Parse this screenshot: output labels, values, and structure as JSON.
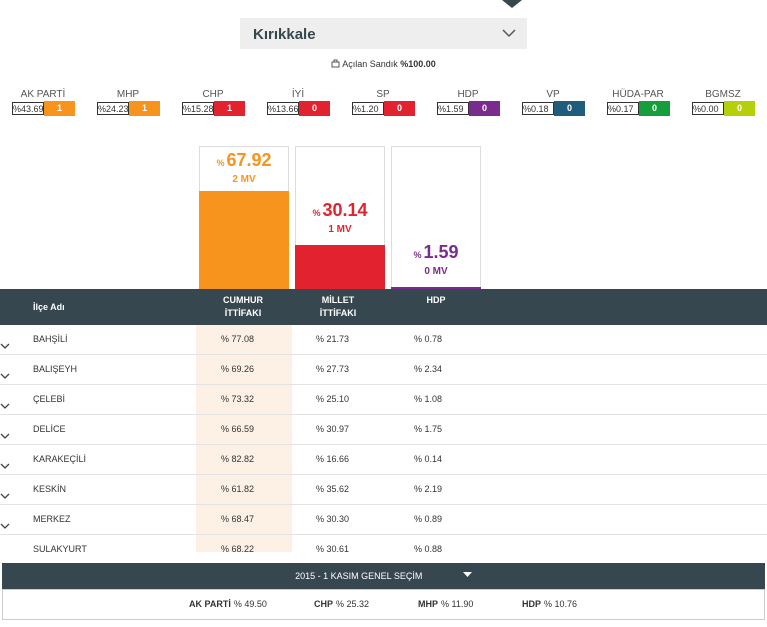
{
  "header": {
    "province": "Kırıkkale",
    "opened_label": "Açılan Sandık",
    "opened_value": "%100.00"
  },
  "parties": [
    {
      "name": "AK PARTİ",
      "pct": "%43.69",
      "seats": "1",
      "color": "#f7941d"
    },
    {
      "name": "MHP",
      "pct": "%24.23",
      "seats": "1",
      "color": "#f7941d"
    },
    {
      "name": "CHP",
      "pct": "%15.28",
      "seats": "1",
      "color": "#e3222f"
    },
    {
      "name": "İYİ",
      "pct": "%13.66",
      "seats": "0",
      "color": "#e3222f"
    },
    {
      "name": "SP",
      "pct": "%1.20",
      "seats": "0",
      "color": "#e3222f"
    },
    {
      "name": "HDP",
      "pct": "%1.59",
      "seats": "0",
      "color": "#7b2b8e"
    },
    {
      "name": "VP",
      "pct": "%0.18",
      "seats": "0",
      "color": "#1f5d7a"
    },
    {
      "name": "HÜDA-PAR",
      "pct": "%0.17",
      "seats": "0",
      "color": "#179e3c"
    },
    {
      "name": "BGMSZ",
      "pct": "%0.00",
      "seats": "0",
      "color": "#b5cf0a"
    }
  ],
  "alliances": {
    "unit": "%",
    "items": [
      {
        "value": 67.92,
        "seats": "2 MV",
        "color": "#f7941d"
      },
      {
        "value": 30.14,
        "seats": "1 MV",
        "color": "#e3222f"
      },
      {
        "value": 1.59,
        "seats": "0 MV",
        "color": "#7b2b8e"
      }
    ]
  },
  "table": {
    "headers": [
      "İlçe Adı",
      "CUMHUR\nİTTİFAKI",
      "MİLLET\nİTTİFAKI",
      "HDP"
    ],
    "rows": [
      [
        "BAHŞİLİ",
        "% 77.08",
        "% 21.73",
        "% 0.78"
      ],
      [
        "BALIŞEYH",
        "% 69.26",
        "% 27.73",
        "% 2.34"
      ],
      [
        "ÇELEBİ",
        "% 73.32",
        "% 25.10",
        "% 1.08"
      ],
      [
        "DELİCE",
        "% 66.59",
        "% 30.97",
        "% 1.75"
      ],
      [
        "KARAKEÇİLİ",
        "% 82.82",
        "% 16.66",
        "% 0.14"
      ],
      [
        "KESKİN",
        "% 61.82",
        "% 35.62",
        "% 2.19"
      ],
      [
        "MERKEZ",
        "% 68.47",
        "% 30.30",
        "% 0.89"
      ],
      [
        "SULAKYURT",
        "% 68.22",
        "% 30.61",
        "% 0.88"
      ]
    ]
  },
  "footer": {
    "election": "2015 - 1 KASIM GENEL SEÇİM",
    "results": [
      {
        "name": "AK PARTİ",
        "value": "% 49.50"
      },
      {
        "name": "CHP",
        "value": "% 25.32"
      },
      {
        "name": "MHP",
        "value": "% 11.90"
      },
      {
        "name": "HDP",
        "value": "% 10.76"
      }
    ]
  }
}
